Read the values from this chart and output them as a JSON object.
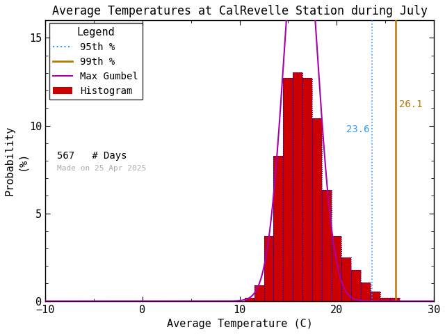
{
  "title": "Average Temperatures at CalRevelle Station during July",
  "xlabel": "Average Temperature (C)",
  "ylabel": "Probability\n(%)",
  "xlim": [
    -10,
    30
  ],
  "ylim": [
    0,
    16
  ],
  "yticks": [
    0,
    5,
    10,
    15
  ],
  "xticks": [
    -10,
    0,
    10,
    20,
    30
  ],
  "bar_color": "#cc0000",
  "bar_edge_color": "#0000bb",
  "gumbel_color": "#aa00aa",
  "p95_color": "#3399ff",
  "p99_color": "#bb7700",
  "p95_value": 23.6,
  "p99_value": 26.1,
  "n_days": 567,
  "made_on": "Made on 25 Apr 2025",
  "legend_title": "Legend",
  "bin_centers": [
    10,
    11,
    12,
    13,
    14,
    15,
    16,
    17,
    18,
    19,
    20,
    21,
    22,
    23,
    24,
    25,
    26,
    27
  ],
  "bin_heights": [
    0.0,
    0.18,
    0.88,
    3.7,
    8.29,
    12.7,
    13.05,
    12.7,
    10.41,
    6.35,
    3.7,
    2.47,
    1.76,
    1.06,
    0.53,
    0.18,
    0.18,
    0.0
  ],
  "gumbel_mu": 16.3,
  "gumbel_sigma": 1.7,
  "background_color": "#ffffff",
  "title_fontsize": 12,
  "axis_fontsize": 11,
  "legend_fontsize": 10,
  "tick_fontsize": 11
}
